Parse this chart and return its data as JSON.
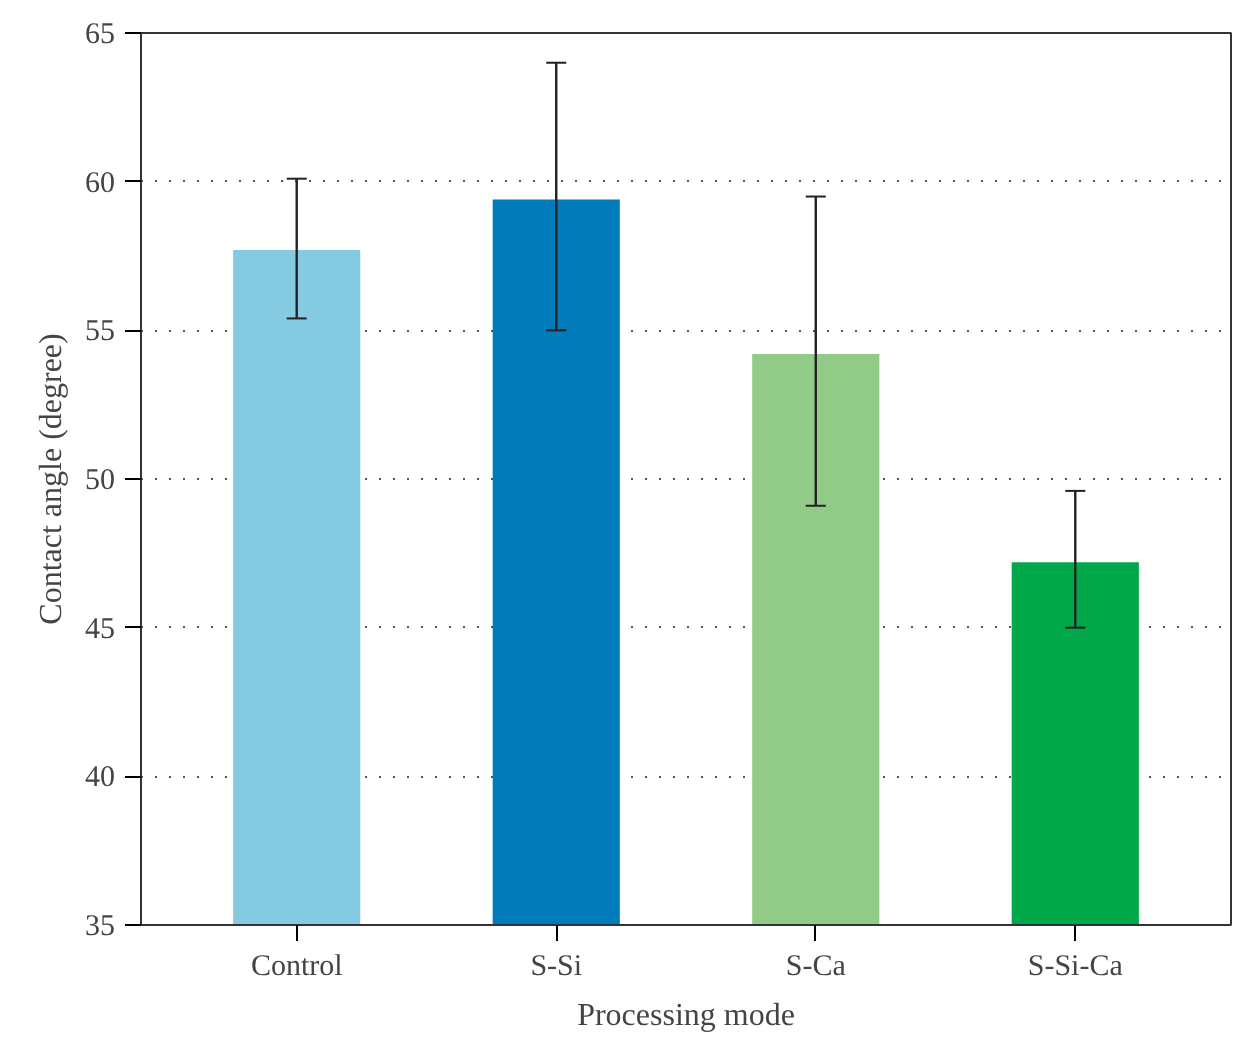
{
  "chart_data": {
    "type": "bar",
    "xlabel": "Processing mode",
    "ylabel": "Contact angle (degree)",
    "categories": [
      "Control",
      "S-Si",
      "S-Ca",
      "S-Si-Ca"
    ],
    "values": [
      57.7,
      59.4,
      54.2,
      47.2
    ],
    "colors": [
      "#84cbe1",
      "#017bba",
      "#92cb87",
      "#00a84a"
    ],
    "errors": [
      [
        55.4,
        60.1
      ],
      [
        55.0,
        64.0
      ],
      [
        49.1,
        59.5
      ],
      [
        45.0,
        49.6
      ]
    ],
    "ylim": [
      35,
      65
    ],
    "yticks": [
      35,
      40,
      45,
      50,
      55,
      60,
      65
    ],
    "grid": "y"
  }
}
